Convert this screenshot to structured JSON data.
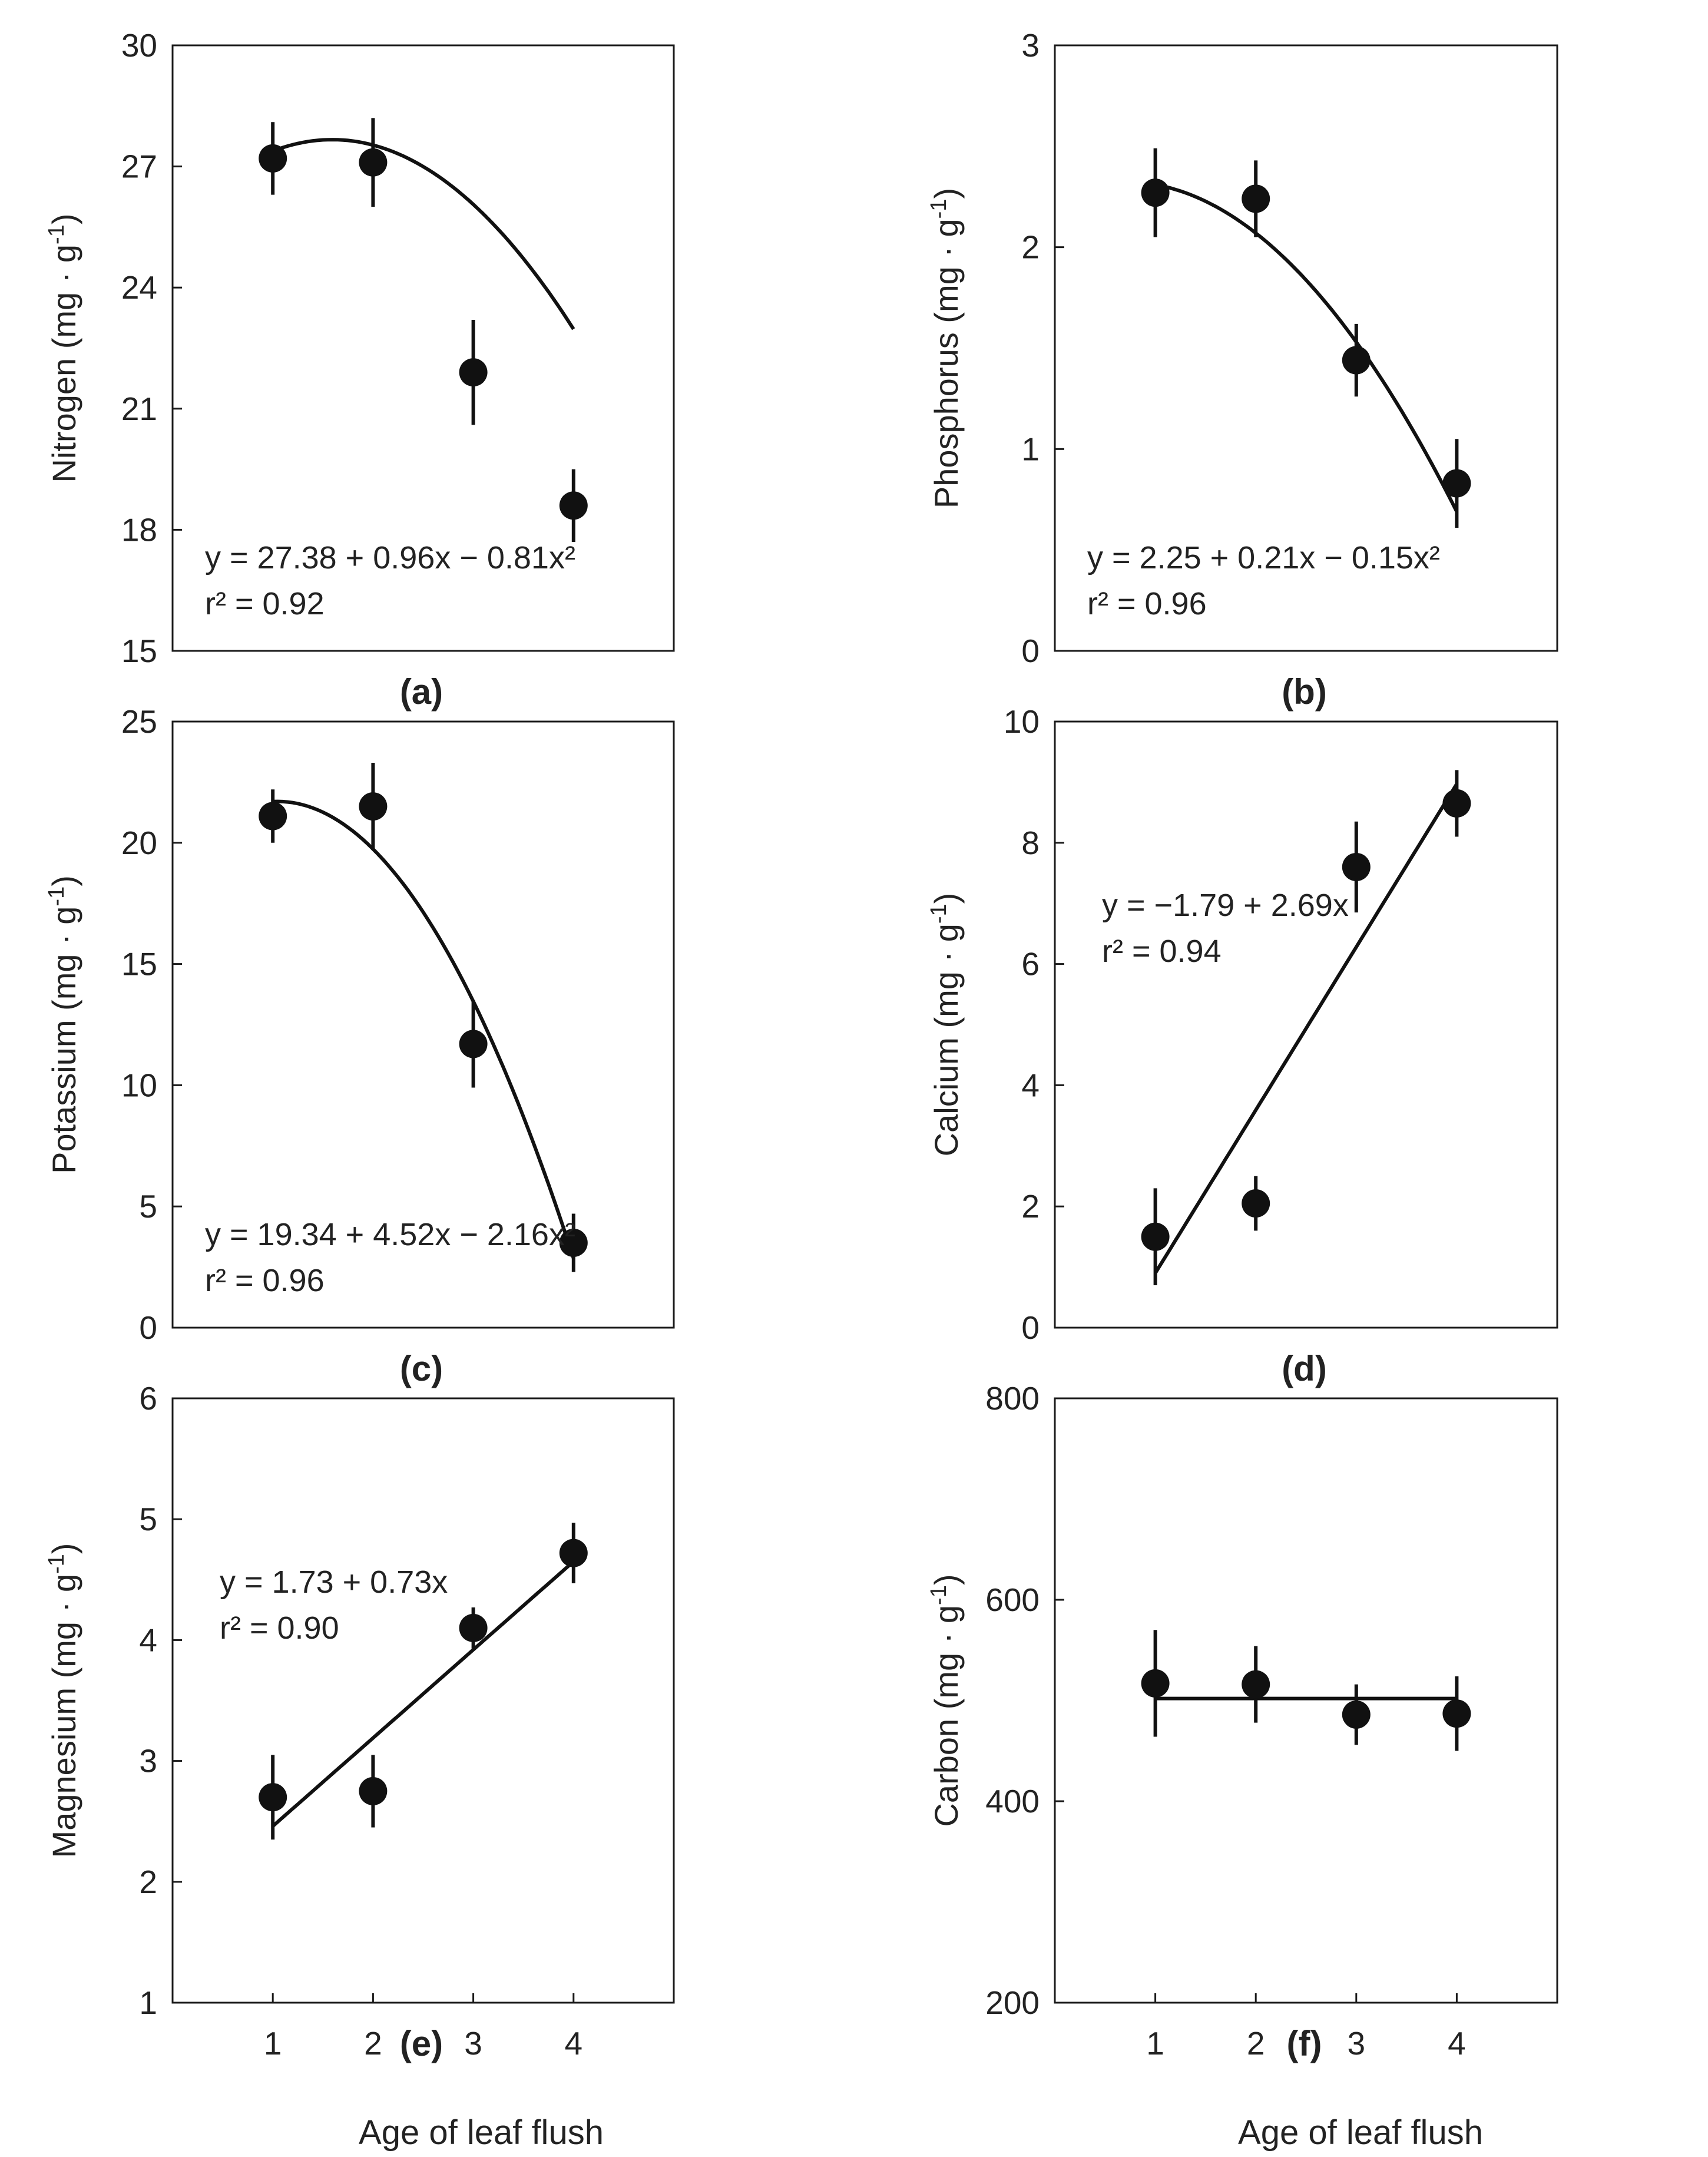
{
  "figure": {
    "x_axis_title": "Age of leaf flush"
  },
  "chart_data": [
    {
      "type": "scatter",
      "panel": "(a)",
      "ylabel": "Nitrogen",
      "yunit": "(mg · g",
      "yunit_sup": "-1",
      "yunit_close": ")",
      "ylim": [
        15,
        30
      ],
      "yticks": [
        15,
        18,
        21,
        24,
        27,
        30
      ],
      "xlim": [
        0,
        5
      ],
      "xticks": [],
      "x": [
        1,
        2,
        3,
        4
      ],
      "y": [
        27.2,
        27.1,
        21.9,
        18.6
      ],
      "err": [
        0.9,
        1.1,
        1.3,
        0.9
      ],
      "fit": {
        "kind": "quadratic",
        "a": 27.38,
        "b": 0.96,
        "c": -0.81,
        "offset": 1,
        "from": 1,
        "to": 4
      },
      "equation": "y = 27.38 + 0.96x − 0.81x²",
      "r2_label": "r² = 0.92",
      "equation_pos": "bottom-left"
    },
    {
      "type": "scatter",
      "panel": "(b)",
      "ylabel": "Phosphorus",
      "yunit": "(mg · g",
      "yunit_sup": "-1",
      "yunit_close": ")",
      "ylim": [
        0,
        3
      ],
      "yticks": [
        0,
        1,
        2,
        3
      ],
      "xlim": [
        0,
        5
      ],
      "xticks": [],
      "x": [
        1,
        2,
        3,
        4
      ],
      "y": [
        2.27,
        2.24,
        1.44,
        0.83
      ],
      "err": [
        0.22,
        0.19,
        0.18,
        0.22
      ],
      "fit": {
        "kind": "quadratic",
        "a": 2.25,
        "b": 0.21,
        "c": -0.15,
        "offset": 0,
        "from": 1,
        "to": 4
      },
      "equation": "y = 2.25 + 0.21x − 0.15x²",
      "r2_label": "r² = 0.96",
      "equation_pos": "bottom-left"
    },
    {
      "type": "scatter",
      "panel": "(c)",
      "ylabel": "Potassium",
      "yunit": "(mg · g",
      "yunit_sup": "-1",
      "yunit_close": ")",
      "ylim": [
        0,
        25
      ],
      "yticks": [
        0,
        5,
        10,
        15,
        20,
        25
      ],
      "xlim": [
        0,
        5
      ],
      "xticks": [],
      "x": [
        1,
        2,
        3,
        4
      ],
      "y": [
        21.1,
        21.5,
        11.7,
        3.5
      ],
      "err": [
        1.1,
        1.8,
        1.8,
        1.2
      ],
      "fit": {
        "kind": "quadratic",
        "a": 19.34,
        "b": 4.52,
        "c": -2.16,
        "offset": 0,
        "from": 1,
        "to": 4
      },
      "equation": "y = 19.34 + 4.52x − 2.16x²",
      "r2_label": "r² = 0.96",
      "equation_pos": "bottom-left"
    },
    {
      "type": "scatter",
      "panel": "(d)",
      "ylabel": "Calcium",
      "yunit": "(mg · g",
      "yunit_sup": "-1",
      "yunit_close": ")",
      "ylim": [
        0,
        10
      ],
      "yticks": [
        0,
        2,
        4,
        6,
        8,
        10
      ],
      "xlim": [
        0,
        5
      ],
      "xticks": [],
      "x": [
        1,
        2,
        3,
        4
      ],
      "y": [
        1.5,
        2.05,
        7.6,
        8.65
      ],
      "err": [
        0.8,
        0.45,
        0.75,
        0.55
      ],
      "fit": {
        "kind": "linear",
        "a": -1.79,
        "b": 2.69,
        "offset": 0,
        "from": 1,
        "to": 4
      },
      "equation": "y = −1.79 + 2.69x",
      "r2_label": "r² = 0.94",
      "equation_pos": "top-left"
    },
    {
      "type": "scatter",
      "panel": "(e)",
      "ylabel": "Magnesium",
      "yunit": "(mg · g",
      "yunit_sup": "-1",
      "yunit_close": ")",
      "ylim": [
        1,
        6
      ],
      "yticks": [
        1,
        2,
        3,
        4,
        5,
        6
      ],
      "xlim": [
        0,
        5
      ],
      "xticks": [
        1,
        2,
        3,
        4
      ],
      "x": [
        1,
        2,
        3,
        4
      ],
      "y": [
        2.7,
        2.75,
        4.1,
        4.72
      ],
      "err": [
        0.35,
        0.3,
        0.17,
        0.25
      ],
      "fit": {
        "kind": "linear",
        "a": 1.73,
        "b": 0.73,
        "offset": 0,
        "from": 1,
        "to": 4
      },
      "equation": "y = 1.73 + 0.73x",
      "r2_label": "r² = 0.90",
      "equation_pos": "top-left"
    },
    {
      "type": "scatter",
      "panel": "(f)",
      "ylabel": "Carbon",
      "yunit": "(mg · g",
      "yunit_sup": "-1",
      "yunit_close": ")",
      "ylim": [
        200,
        800
      ],
      "yticks": [
        200,
        400,
        600,
        800
      ],
      "xlim": [
        0,
        5
      ],
      "xticks": [
        1,
        2,
        3,
        4
      ],
      "x": [
        1,
        2,
        3,
        4
      ],
      "y": [
        517,
        516,
        486,
        487
      ],
      "err": [
        53,
        38,
        30,
        37
      ],
      "fit": {
        "kind": "constant",
        "a": 502,
        "offset": 0,
        "from": 1,
        "to": 4
      },
      "equation": "",
      "r2_label": "",
      "equation_pos": "none"
    }
  ]
}
